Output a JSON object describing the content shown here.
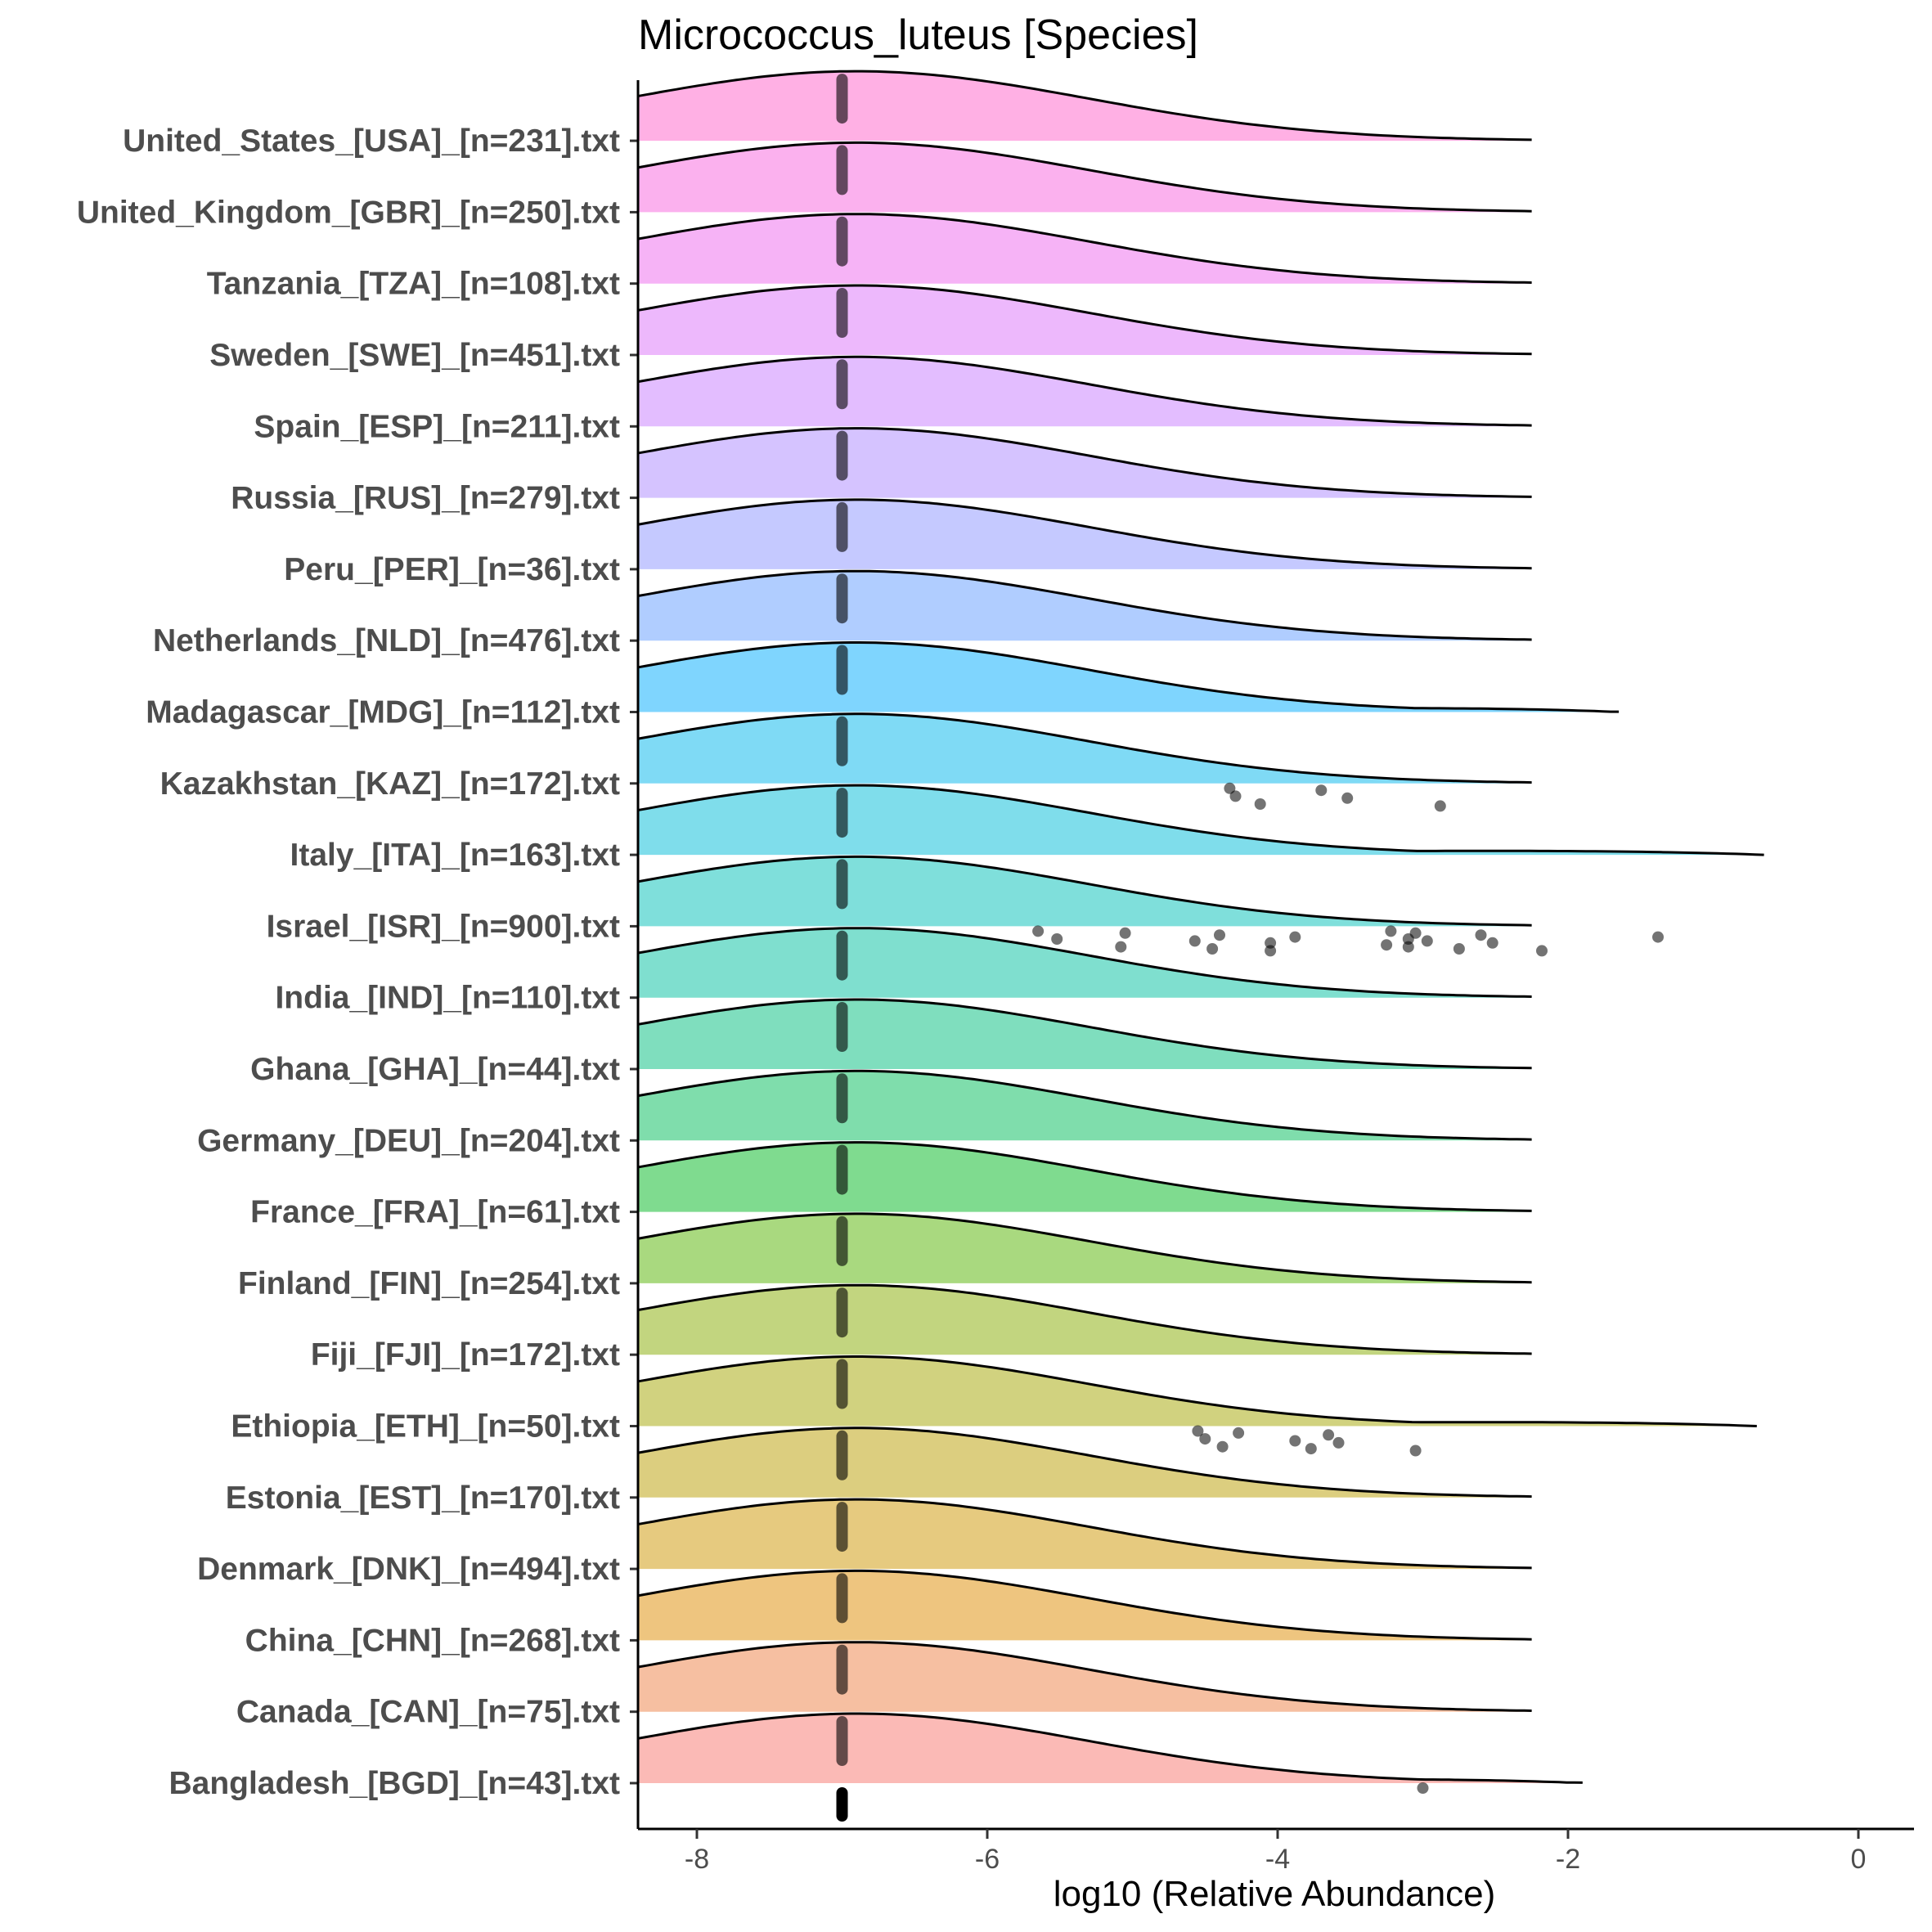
{
  "chart_data": {
    "type": "ridgeline",
    "title": "Micrococcus_luteus [Species]",
    "xlabel": "log10 (Relative Abundance)",
    "ylabel": "",
    "xlim": [
      -8.4,
      0.4
    ],
    "xticks": [
      -8,
      -6,
      -4,
      -2,
      0
    ],
    "grid": false,
    "legend": "none",
    "density_peak_x": -6.9,
    "density_sd": 1.6,
    "median_marker_x": -7.0,
    "series": [
      {
        "name": "Bangladesh_[BGD]_[n=43].txt",
        "color": "#F8766D",
        "x_max": -1.9,
        "outliers": [
          -3.0
        ]
      },
      {
        "name": "Canada_[CAN]_[n=75].txt",
        "color": "#EE8043",
        "x_max": -2.25,
        "outliers": []
      },
      {
        "name": "China_[CHN]_[n=268].txt",
        "color": "#DE8C00",
        "x_max": -2.25,
        "outliers": []
      },
      {
        "name": "Denmark_[DNK]_[n=494].txt",
        "color": "#CD9600",
        "x_max": -2.25,
        "outliers": []
      },
      {
        "name": "Estonia_[EST]_[n=170].txt",
        "color": "#BA9E00",
        "x_max": -2.25,
        "outliers": []
      },
      {
        "name": "Ethiopia_[ETH]_[n=50].txt",
        "color": "#A3A500",
        "x_max": -0.7,
        "outliers": [
          -4.55,
          -4.5,
          -4.38,
          -4.27,
          -3.88,
          -3.77,
          -3.65,
          -3.58,
          -3.05
        ]
      },
      {
        "name": "Fiji_[FJI]_[n=172].txt",
        "color": "#86AC00",
        "x_max": -2.25,
        "outliers": []
      },
      {
        "name": "Finland_[FIN]_[n=254].txt",
        "color": "#53B400",
        "x_max": -2.25,
        "outliers": []
      },
      {
        "name": "France_[FRA]_[n=61].txt",
        "color": "#00B81F",
        "x_max": -2.25,
        "outliers": []
      },
      {
        "name": "Germany_[DEU]_[n=204].txt",
        "color": "#00BC59",
        "x_max": -2.25,
        "outliers": []
      },
      {
        "name": "Ghana_[GHA]_[n=44].txt",
        "color": "#00BE7D",
        "x_max": -2.25,
        "outliers": []
      },
      {
        "name": "India_[IND]_[n=110].txt",
        "color": "#00C0A0",
        "x_max": -2.25,
        "outliers": []
      },
      {
        "name": "Israel_[ISR]_[n=900].txt",
        "color": "#00C0B8",
        "x_max": -2.25,
        "outliers": [
          -5.65,
          -5.52,
          -5.08,
          -5.05,
          -4.57,
          -4.45,
          -4.4,
          -4.05,
          -4.05,
          -3.88,
          -3.25,
          -3.22,
          -3.1,
          -3.1,
          -3.05,
          -2.97,
          -2.75,
          -2.6,
          -2.52,
          -2.18,
          -1.38
        ]
      },
      {
        "name": "Italy_[ITA]_[n=163].txt",
        "color": "#00BCD8",
        "x_max": -0.65,
        "outliers": []
      },
      {
        "name": "Kazakhstan_[KAZ]_[n=172].txt",
        "color": "#00B5EB",
        "x_max": -2.25,
        "outliers": [
          -4.33,
          -4.29,
          -4.12,
          -3.7,
          -3.52,
          -2.88
        ]
      },
      {
        "name": "Madagascar_[MDG]_[n=112].txt",
        "color": "#00ABFD",
        "x_max": -1.65,
        "outliers": []
      },
      {
        "name": "Netherlands_[NLD]_[n=476].txt",
        "color": "#619CFF",
        "x_max": -2.25,
        "outliers": []
      },
      {
        "name": "Peru_[PER]_[n=36].txt",
        "color": "#8B93FF",
        "x_max": -2.25,
        "outliers": []
      },
      {
        "name": "Russia_[RUS]_[n=279].txt",
        "color": "#AC88FF",
        "x_max": -2.25,
        "outliers": []
      },
      {
        "name": "Spain_[ESP]_[n=211].txt",
        "color": "#C77CFF",
        "x_max": -2.25,
        "outliers": []
      },
      {
        "name": "Sweden_[SWE]_[n=451].txt",
        "color": "#DC71FA",
        "x_max": -2.25,
        "outliers": []
      },
      {
        "name": "Tanzania_[TZA]_[n=108].txt",
        "color": "#ED68ED",
        "x_max": -2.25,
        "outliers": []
      },
      {
        "name": "United_Kingdom_[GBR]_[n=250].txt",
        "color": "#F863DE",
        "x_max": -2.25,
        "outliers": []
      },
      {
        "name": "United_States_[USA]_[n=231].txt",
        "color": "#FF61C9",
        "x_max": -2.25,
        "outliers": []
      }
    ]
  }
}
